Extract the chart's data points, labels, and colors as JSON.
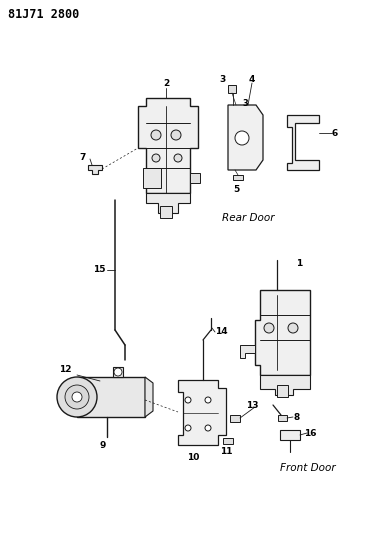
{
  "title_code": "81J71 2800",
  "bg_color": "#ffffff",
  "line_color": "#1a1a1a",
  "label_rear_door": "Rear Door",
  "label_front_door": "Front Door",
  "figsize": [
    3.9,
    5.33
  ],
  "dpi": 100
}
